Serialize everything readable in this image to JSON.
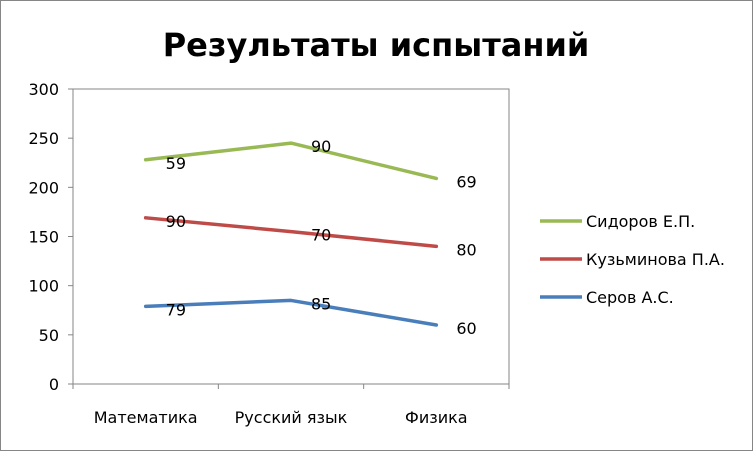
{
  "chart_data": {
    "type": "line",
    "stacked": true,
    "title": "Результаты испытаний",
    "categories": [
      "Математика",
      "Русский язык",
      "Физика"
    ],
    "series": [
      {
        "name": "Серов А.С.",
        "values": [
          79,
          85,
          60
        ],
        "color": "#4a7ebb"
      },
      {
        "name": "Кузьминова П.А.",
        "values": [
          90,
          70,
          80
        ],
        "color": "#be4b48"
      },
      {
        "name": "Сидоров Е.П.",
        "values": [
          59,
          90,
          69
        ],
        "color": "#98b954"
      }
    ],
    "legend_order": [
      2,
      1,
      0
    ],
    "ylim": [
      0,
      300
    ],
    "yticks": [
      0,
      50,
      100,
      150,
      200,
      250,
      300
    ],
    "ytick_labels": [
      "0",
      "50",
      "100",
      "150",
      "200",
      "250",
      "300"
    ],
    "grid": false,
    "legend_position": "right"
  }
}
